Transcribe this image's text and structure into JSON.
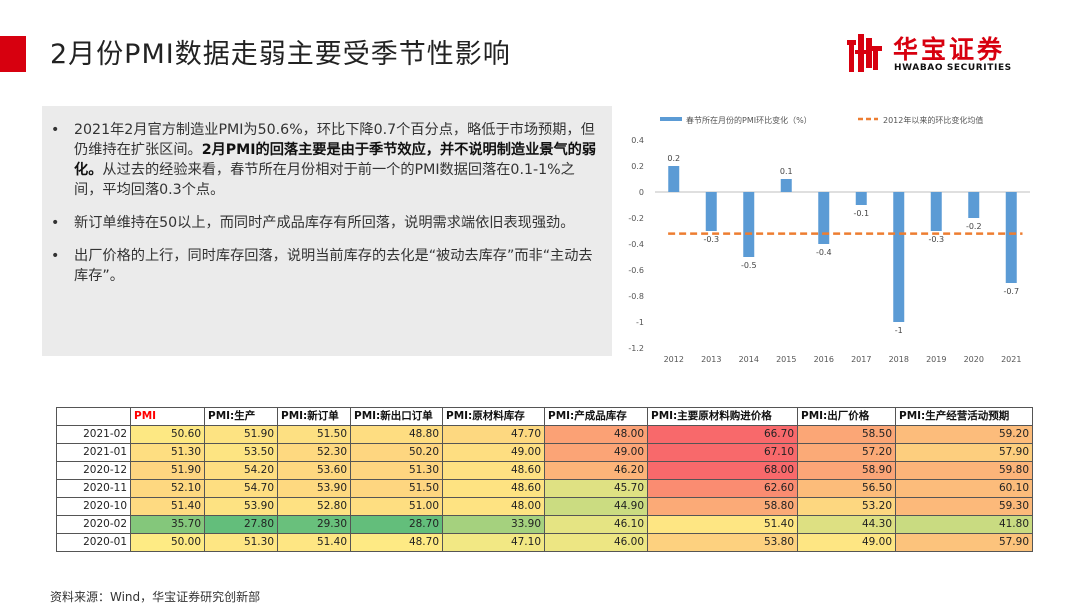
{
  "header": {
    "title": "2月份PMI数据走弱主要受季节性影响",
    "accent_color": "#d7000f",
    "logo": {
      "name_cn": "华宝证券",
      "name_en": "HWABAO SECURITIES",
      "icon": "hwabao-logo-icon"
    }
  },
  "bullets": [
    {
      "pre": "2021年2月官方制造业PMI为50.6%，环比下降0.7个百分点，略低于市场预期，但仍维持在扩张区间。",
      "bold": "2月PMI的回落主要是由于季节效应，并不说明制造业景气的弱化。",
      "post": "从过去的经验来看，春节所在月份相对于前一个的PMI数据回落在0.1-1%之间，平均回落0.3个点。"
    },
    {
      "pre": "新订单维持在50以上，而同时产成品库存有所回落，说明需求端依旧表现强劲。",
      "bold": "",
      "post": ""
    },
    {
      "pre": "出厂价格的上行，同时库存回落，说明当前库存的去化是“被动去库存”而非“主动去库存”。",
      "bold": "",
      "post": ""
    }
  ],
  "chart_data": {
    "type": "bar",
    "categories": [
      "2012",
      "2013",
      "2014",
      "2015",
      "2016",
      "2017",
      "2018",
      "2019",
      "2020",
      "2021"
    ],
    "series": [
      {
        "name": "春节所在月份的PMI环比变化（%）",
        "values": [
          0.2,
          -0.3,
          -0.5,
          0.1,
          -0.4,
          -0.1,
          -1,
          -0.3,
          -0.2,
          -0.7
        ],
        "color": "#5b9bd5"
      },
      {
        "name": "2012年以来的环比变化均值",
        "values": [
          -0.32,
          -0.32,
          -0.32,
          -0.32,
          -0.32,
          -0.32,
          -0.32,
          -0.32,
          -0.32,
          -0.32
        ],
        "color": "#ed7d31",
        "style": "dashed"
      }
    ],
    "data_labels": [
      "0.2",
      "-0.3",
      "-0.5",
      "0.1",
      "-0.4",
      "-0.1",
      "-1",
      "-0.3",
      "-0.2",
      "-0.7"
    ],
    "yticks": [
      0.4,
      0.2,
      0,
      -0.2,
      -0.4,
      -0.6,
      -0.8,
      -1,
      -1.2
    ],
    "ytick_labels": [
      "0.4",
      "0.2",
      "0",
      "-0.2",
      "-0.4",
      "-0.6",
      "-0.8",
      "-1",
      "-1.2"
    ],
    "ylim": [
      -1.2,
      0.4
    ],
    "legend_position": "top"
  },
  "table": {
    "headers": [
      "",
      "PMI",
      "PMI:生产",
      "PMI:新订单",
      "PMI:新出口订单",
      "PMI:原材料库存",
      "PMI:产成品库存",
      "PMI:主要原材料购进价格",
      "PMI:出厂价格",
      "PMI:生产经营活动预期"
    ],
    "pmi_header_color": "#ff0000",
    "rows": [
      {
        "date": "2021-02",
        "cells": [
          {
            "v": "50.60",
            "c": "#fde883"
          },
          {
            "v": "51.90",
            "c": "#fde382"
          },
          {
            "v": "51.50",
            "c": "#fde082"
          },
          {
            "v": "48.80",
            "c": "#fedd81"
          },
          {
            "v": "47.70",
            "c": "#fdd880"
          },
          {
            "v": "48.00",
            "c": "#fba175"
          },
          {
            "v": "66.70",
            "c": "#f8696b"
          },
          {
            "v": "58.50",
            "c": "#fba676"
          },
          {
            "v": "59.20",
            "c": "#fcbc7b"
          }
        ]
      },
      {
        "date": "2021-01",
        "cells": [
          {
            "v": "51.30",
            "c": "#fede81"
          },
          {
            "v": "53.50",
            "c": "#fde482"
          },
          {
            "v": "52.30",
            "c": "#fed980"
          },
          {
            "v": "50.20",
            "c": "#fed680"
          },
          {
            "v": "49.00",
            "c": "#fede81"
          },
          {
            "v": "49.00",
            "c": "#fba476"
          },
          {
            "v": "67.10",
            "c": "#f8696b"
          },
          {
            "v": "57.20",
            "c": "#fbaa77"
          },
          {
            "v": "57.90",
            "c": "#fdce7e"
          }
        ]
      },
      {
        "date": "2020-12",
        "cells": [
          {
            "v": "51.90",
            "c": "#fed580"
          },
          {
            "v": "54.20",
            "c": "#fede81"
          },
          {
            "v": "53.60",
            "c": "#fed880"
          },
          {
            "v": "51.30",
            "c": "#fed580"
          },
          {
            "v": "48.60",
            "c": "#fee182"
          },
          {
            "v": "46.20",
            "c": "#fcb479"
          },
          {
            "v": "68.00",
            "c": "#f8696b"
          },
          {
            "v": "58.90",
            "c": "#fba577"
          },
          {
            "v": "59.80",
            "c": "#fcb479"
          }
        ]
      },
      {
        "date": "2020-11",
        "cells": [
          {
            "v": "52.10",
            "c": "#fed880"
          },
          {
            "v": "54.70",
            "c": "#fede81"
          },
          {
            "v": "53.90",
            "c": "#fed980"
          },
          {
            "v": "51.50",
            "c": "#fed680"
          },
          {
            "v": "48.60",
            "c": "#fee382"
          },
          {
            "v": "45.70",
            "c": "#dfe183"
          },
          {
            "v": "62.60",
            "c": "#fa8c71"
          },
          {
            "v": "56.50",
            "c": "#fcbc7a"
          },
          {
            "v": "60.10",
            "c": "#fcbc7b"
          }
        ]
      },
      {
        "date": "2020-10",
        "cells": [
          {
            "v": "51.40",
            "c": "#feda81"
          },
          {
            "v": "53.90",
            "c": "#fde282"
          },
          {
            "v": "52.80",
            "c": "#fee182"
          },
          {
            "v": "51.00",
            "c": "#fede81"
          },
          {
            "v": "48.00",
            "c": "#fee382"
          },
          {
            "v": "44.90",
            "c": "#cbdc81"
          },
          {
            "v": "58.80",
            "c": "#fbaa77"
          },
          {
            "v": "53.20",
            "c": "#fdd780"
          },
          {
            "v": "59.30",
            "c": "#fcb97a"
          }
        ]
      },
      {
        "date": "2020-02",
        "cells": [
          {
            "v": "35.70",
            "c": "#84c77b"
          },
          {
            "v": "27.80",
            "c": "#63be7b"
          },
          {
            "v": "29.30",
            "c": "#69c07c"
          },
          {
            "v": "28.70",
            "c": "#63be7b"
          },
          {
            "v": "33.90",
            "c": "#a5d17e"
          },
          {
            "v": "46.10",
            "c": "#e5e483"
          },
          {
            "v": "51.40",
            "c": "#fee683"
          },
          {
            "v": "44.30",
            "c": "#dde082"
          },
          {
            "v": "41.80",
            "c": "#c9db81"
          }
        ]
      },
      {
        "date": "2020-01",
        "cells": [
          {
            "v": "50.00",
            "c": "#feeb84"
          },
          {
            "v": "51.30",
            "c": "#fee683"
          },
          {
            "v": "51.40",
            "c": "#fee683"
          },
          {
            "v": "48.70",
            "c": "#feea84"
          },
          {
            "v": "47.10",
            "c": "#f2e884"
          },
          {
            "v": "46.00",
            "c": "#ede683"
          },
          {
            "v": "53.80",
            "c": "#fdd17f"
          },
          {
            "v": "49.00",
            "c": "#fee683"
          },
          {
            "v": "57.90",
            "c": "#fcc37c"
          }
        ]
      }
    ]
  },
  "source": "资料来源：Wind，华宝证券研究创新部"
}
